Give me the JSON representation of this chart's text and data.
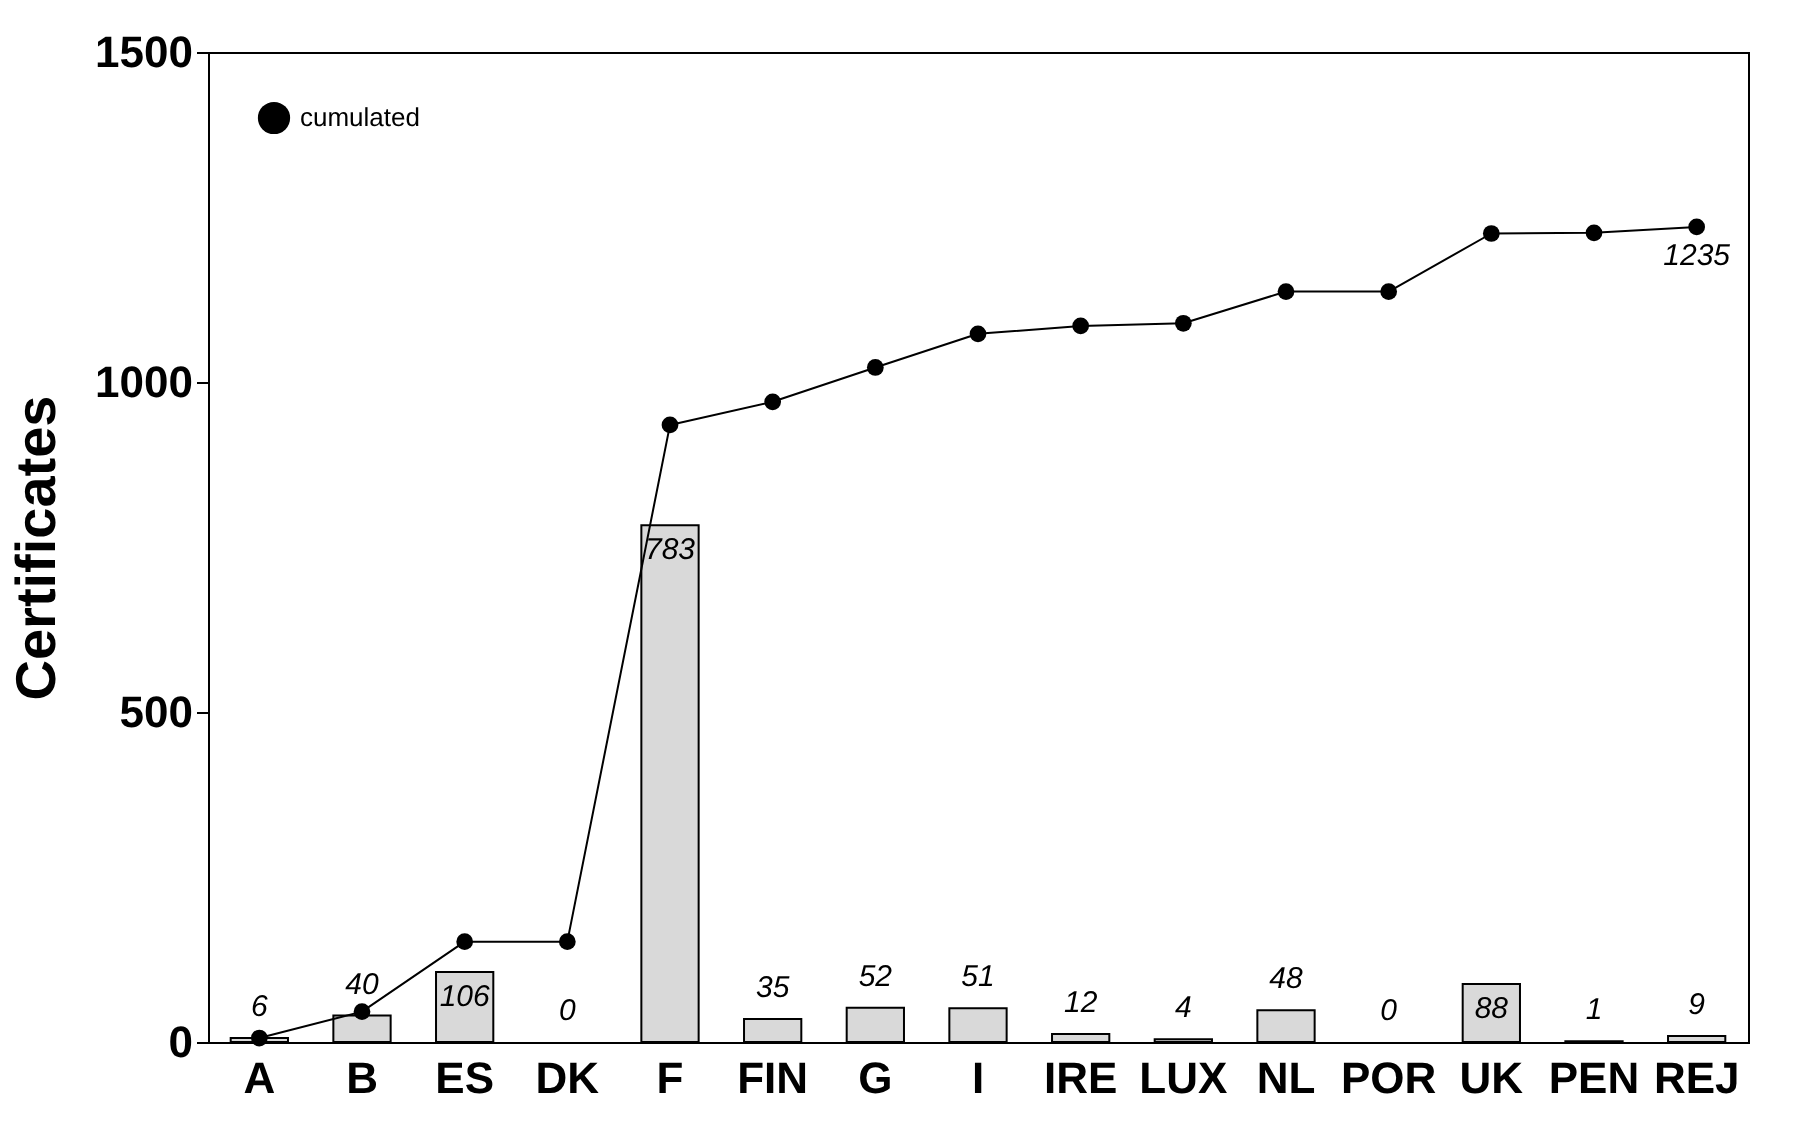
{
  "chart_data": {
    "type": "bar",
    "ylabel": "Certificates",
    "categories": [
      "A",
      "B",
      "ES",
      "DK",
      "F",
      "FIN",
      "G",
      "I",
      "IRE",
      "LUX",
      "NL",
      "POR",
      "UK",
      "PEN",
      "REJ"
    ],
    "series": [
      {
        "color": "#d9d9d9",
        "values": [
          6,
          40,
          106,
          0,
          783,
          35,
          52,
          51,
          12,
          4,
          48,
          0,
          88,
          1,
          9
        ],
        "data_labels": true
      },
      {
        "type": "line",
        "name": "cumulated",
        "color": "#000000",
        "marker": "circle",
        "values": [
          6,
          46,
          152,
          152,
          935,
          970,
          1022,
          1073,
          1085,
          1089,
          1137,
          1137,
          1225,
          1226,
          1235
        ]
      }
    ],
    "annotations": [
      {
        "text": "1235",
        "x": "REJ",
        "y": 1235
      }
    ],
    "ylim": [
      0,
      1500
    ],
    "yticks": [
      0,
      500,
      1000,
      1500
    ],
    "grid": false,
    "legend": "top left"
  }
}
